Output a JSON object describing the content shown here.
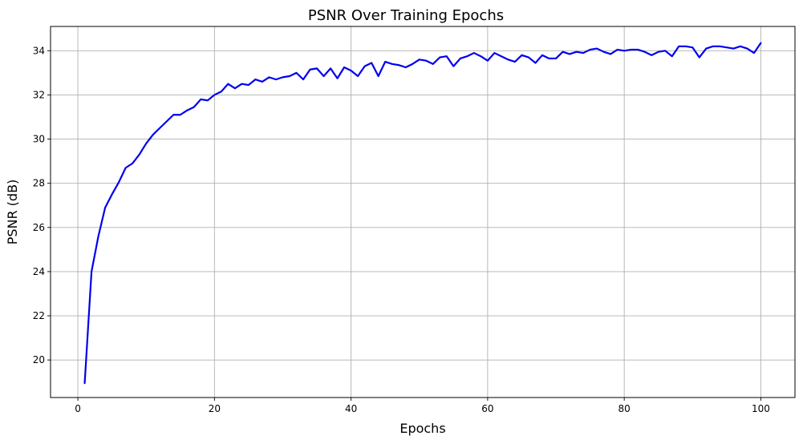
{
  "chart_data": {
    "type": "line",
    "title": "PSNR Over Training Epochs",
    "xlabel": "Epochs",
    "ylabel": "PSNR (dB)",
    "xlim": [
      -4,
      105
    ],
    "ylim": [
      18.3,
      35.1
    ],
    "xticks": [
      0,
      20,
      40,
      60,
      80,
      100
    ],
    "yticks": [
      20,
      22,
      24,
      26,
      28,
      30,
      32,
      34
    ],
    "grid": true,
    "line_color": "#0000ee",
    "series": [
      {
        "x": [
          1,
          2,
          3,
          4,
          5,
          6,
          7,
          8,
          9,
          10,
          11,
          12,
          13,
          14,
          15,
          16,
          17,
          18,
          19,
          20,
          21,
          22,
          23,
          24,
          25,
          26,
          27,
          28,
          29,
          30,
          31,
          32,
          33,
          34,
          35,
          36,
          37,
          38,
          39,
          40,
          41,
          42,
          43,
          44,
          45,
          46,
          47,
          48,
          49,
          50,
          51,
          52,
          53,
          54,
          55,
          56,
          57,
          58,
          59,
          60,
          61,
          62,
          63,
          64,
          65,
          66,
          67,
          68,
          69,
          70,
          71,
          72,
          73,
          74,
          75,
          76,
          77,
          78,
          79,
          80,
          81,
          82,
          83,
          84,
          85,
          86,
          87,
          88,
          89,
          90,
          91,
          92,
          93,
          94,
          95,
          96,
          97,
          98,
          99,
          100
        ],
        "values": [
          18.95,
          24.0,
          25.6,
          26.9,
          27.5,
          28.05,
          28.7,
          28.9,
          29.3,
          29.8,
          30.2,
          30.5,
          30.8,
          31.1,
          31.1,
          31.3,
          31.45,
          31.8,
          31.75,
          32.0,
          32.15,
          32.5,
          32.3,
          32.5,
          32.45,
          32.7,
          32.6,
          32.8,
          32.7,
          32.8,
          32.85,
          33.0,
          32.7,
          33.15,
          33.2,
          32.85,
          33.2,
          32.75,
          33.25,
          33.1,
          32.85,
          33.3,
          33.45,
          32.85,
          33.5,
          33.4,
          33.35,
          33.25,
          33.4,
          33.6,
          33.55,
          33.4,
          33.7,
          33.75,
          33.3,
          33.65,
          33.75,
          33.9,
          33.75,
          33.55,
          33.9,
          33.75,
          33.6,
          33.5,
          33.8,
          33.7,
          33.45,
          33.8,
          33.65,
          33.65,
          33.95,
          33.85,
          33.95,
          33.9,
          34.05,
          34.1,
          33.95,
          33.85,
          34.05,
          34.0,
          34.05,
          34.05,
          33.95,
          33.8,
          33.95,
          34.0,
          33.75,
          34.2,
          34.2,
          34.15,
          33.7,
          34.1,
          34.2,
          34.2,
          34.15,
          34.1,
          34.2,
          34.1,
          33.9,
          34.35
        ]
      }
    ]
  }
}
